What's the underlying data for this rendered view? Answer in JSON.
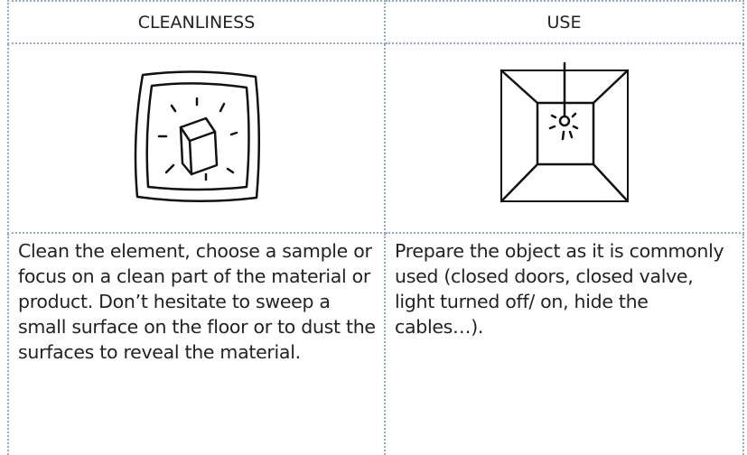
{
  "table": {
    "header": [
      "CLEANLINESS",
      "USE"
    ],
    "rows": [
      [
        "Clean the element, choose a sample or focus on a clean part of the material or product. Don’t hesitate to sweep a small surface on the floor or to dust the surfaces to reveal the material.",
        "Prepare the object as it is commonly used (closed doors, closed valve, light turned off/ on, hide the cables…)."
      ]
    ]
  }
}
